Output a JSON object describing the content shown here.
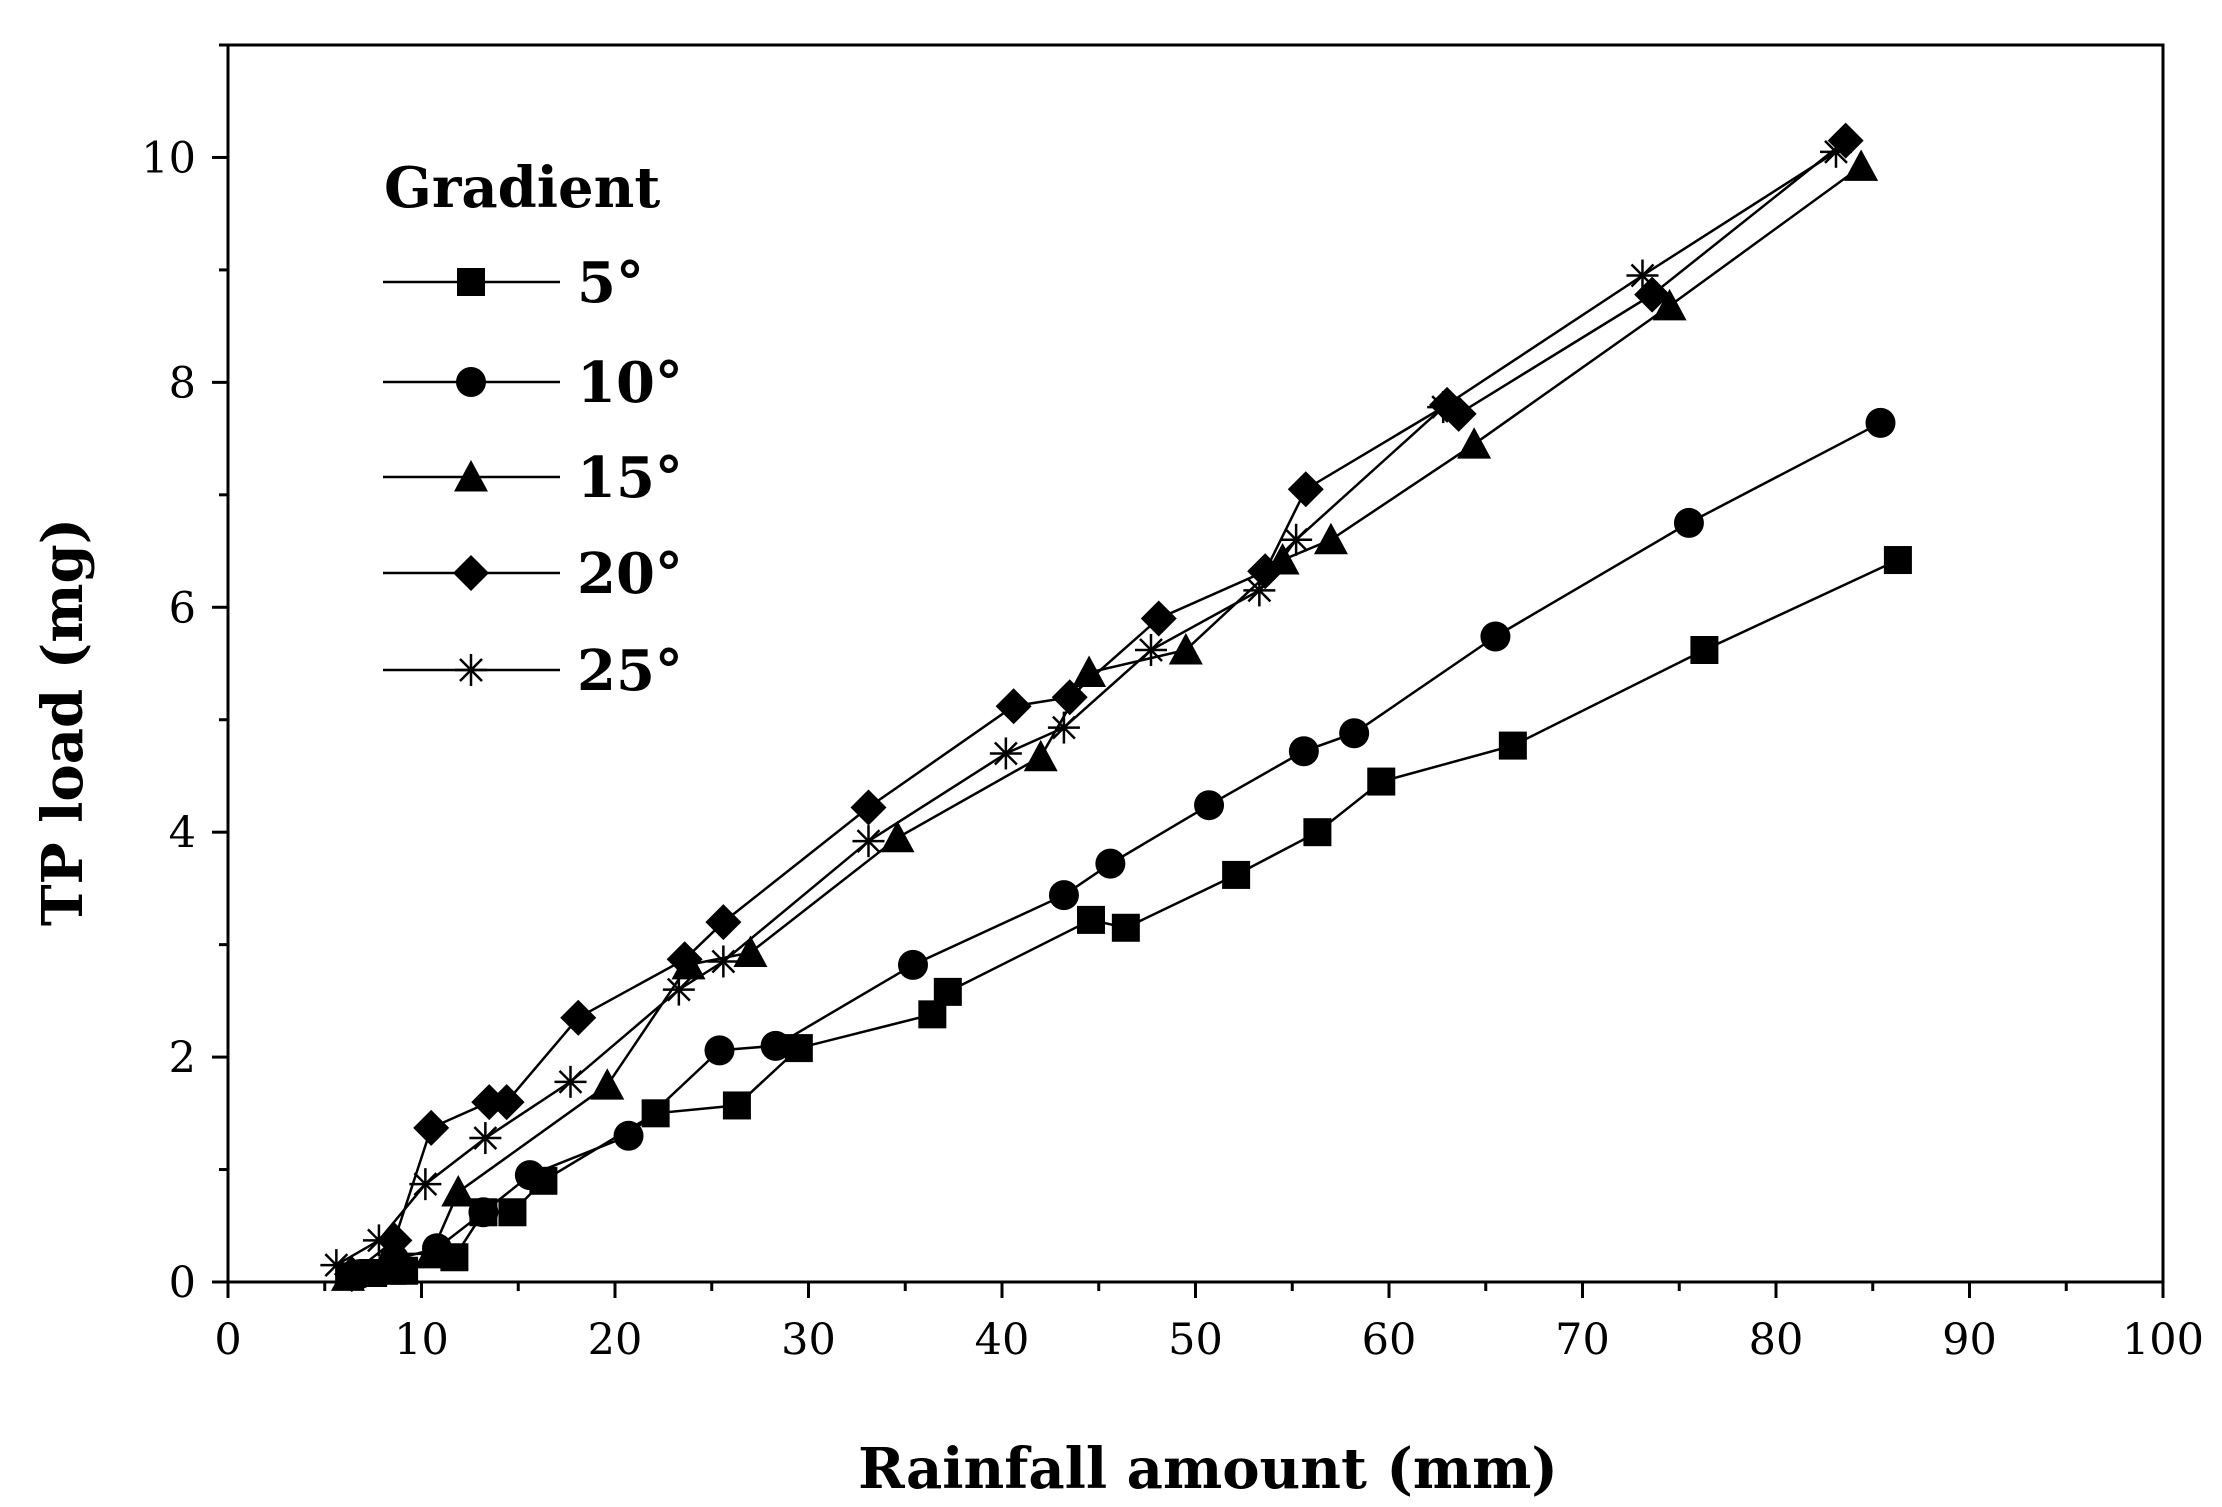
{
  "chart_data": {
    "type": "line",
    "title": "",
    "xlabel": "Rainfall amount (mm)",
    "ylabel": "TP load (mg)",
    "xlim": [
      0,
      100
    ],
    "ylim": [
      0,
      11
    ],
    "x_ticks": [
      0,
      10,
      20,
      30,
      40,
      50,
      60,
      70,
      80,
      90,
      100
    ],
    "y_ticks": [
      0,
      2,
      4,
      6,
      8,
      10
    ],
    "x_tick_labels": [
      "0",
      "10",
      "20",
      "30",
      "40",
      "50",
      "60",
      "70",
      "80",
      "90",
      "100"
    ],
    "y_tick_labels": [
      "0",
      "2",
      "4",
      "6",
      "8",
      "10"
    ],
    "legend": {
      "title": "Gradient",
      "placement": "top-left"
    },
    "grid": false,
    "series": [
      {
        "name": "5°",
        "marker": "square",
        "x": [
          6.3,
          7.5,
          8.5,
          9.1,
          11.7,
          13.2,
          14.7,
          16.3,
          22.1,
          26.3,
          29.5,
          36.4,
          37.2,
          44.6,
          46.4,
          52.1,
          56.3,
          59.6,
          66.4,
          76.3,
          86.3
        ],
        "y": [
          0.05,
          0.08,
          0.1,
          0.1,
          0.22,
          0.62,
          0.62,
          0.9,
          1.5,
          1.57,
          2.08,
          2.38,
          2.58,
          3.22,
          3.15,
          3.62,
          4.0,
          4.45,
          4.77,
          5.62,
          6.42
        ]
      },
      {
        "name": "10°",
        "marker": "circle",
        "x": [
          6.8,
          8.6,
          10.8,
          13.2,
          15.6,
          20.7,
          25.4,
          28.3,
          35.4,
          43.2,
          45.6,
          50.7,
          55.6,
          58.2,
          65.5,
          75.5,
          85.4
        ],
        "y": [
          0.07,
          0.2,
          0.3,
          0.62,
          0.95,
          1.3,
          2.06,
          2.1,
          2.82,
          3.44,
          3.72,
          4.24,
          4.72,
          4.88,
          5.74,
          6.75,
          7.64
        ]
      },
      {
        "name": "15°",
        "marker": "triangle",
        "x": [
          6.2,
          8.4,
          10.5,
          11.9,
          19.6,
          23.8,
          27.0,
          34.6,
          42.0,
          44.5,
          49.5,
          54.5,
          57.0,
          64.4,
          74.5,
          84.4
        ],
        "y": [
          0.05,
          0.25,
          0.25,
          0.8,
          1.75,
          2.82,
          2.93,
          3.95,
          4.67,
          5.42,
          5.62,
          6.42,
          6.6,
          7.45,
          8.68,
          9.92
        ]
      },
      {
        "name": "20°",
        "marker": "diamond",
        "x": [
          6.4,
          8.6,
          10.5,
          13.5,
          14.4,
          18.1,
          23.6,
          25.6,
          33.1,
          40.6,
          43.5,
          48.1,
          53.6,
          55.7,
          63.0,
          63.6,
          73.6,
          83.6
        ],
        "y": [
          0.07,
          0.37,
          1.37,
          1.6,
          1.6,
          2.35,
          2.87,
          3.2,
          4.22,
          5.12,
          5.2,
          5.9,
          6.32,
          7.05,
          7.8,
          7.72,
          8.78,
          10.15
        ]
      },
      {
        "name": "25°",
        "marker": "star",
        "x": [
          5.6,
          7.8,
          10.2,
          13.3,
          17.7,
          23.3,
          25.6,
          33.1,
          40.2,
          43.2,
          47.7,
          53.3,
          55.2,
          62.8,
          73.1,
          83.1
        ],
        "y": [
          0.15,
          0.37,
          0.87,
          1.28,
          1.78,
          2.6,
          2.85,
          3.92,
          4.7,
          4.93,
          5.62,
          6.15,
          6.6,
          7.78,
          8.95,
          10.05
        ]
      }
    ]
  }
}
